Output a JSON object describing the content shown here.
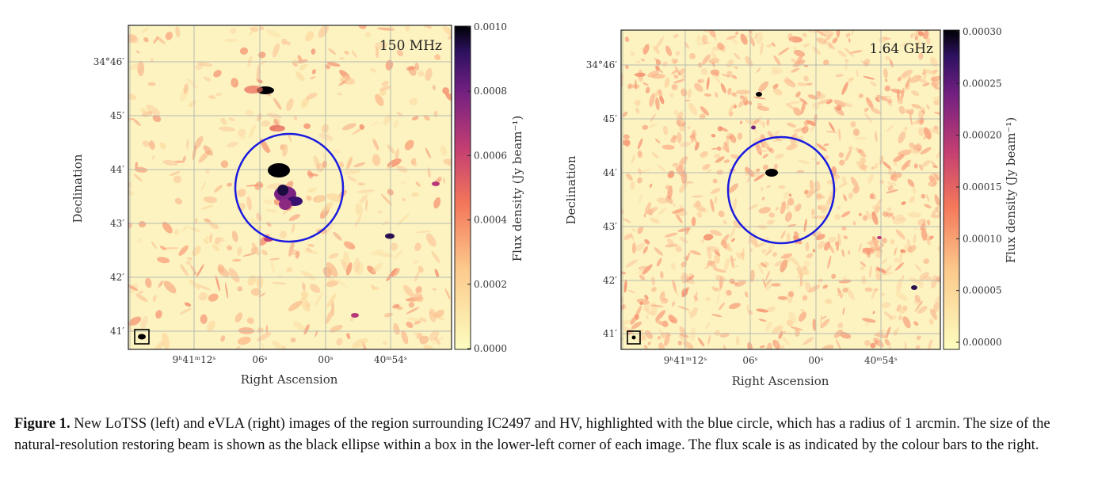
{
  "panels": [
    {
      "frequency": "150 MHz",
      "colorbar_ticks": [
        "0.0010",
        "0.0008",
        "0.0006",
        "0.0004",
        "0.0002",
        "0.0000"
      ],
      "colorbar_label": "Flux density (Jy beam⁻¹)"
    },
    {
      "frequency": "1.64 GHz",
      "colorbar_ticks": [
        "0.00030",
        "0.00025",
        "0.00020",
        "0.00015",
        "0.00010",
        "0.00005",
        "0.00000"
      ],
      "colorbar_label": "Flux density (Jy beam⁻¹)"
    }
  ],
  "axes": {
    "xlabel": "Right Ascension",
    "ylabel": "Declination",
    "ra_ticks": [
      "9ʰ41ᵐ12ˢ",
      "06ˢ",
      "00ˢ",
      "40ᵐ54ˢ"
    ],
    "dec_ticks": [
      "34°46′",
      "45′",
      "44′",
      "43′",
      "42′",
      "41′"
    ]
  },
  "colors": {
    "background": "#fcf3c0",
    "circle": "#1a1ae0",
    "colormap": [
      "#fcfdbf",
      "#fc8961",
      "#b73779",
      "#51127c",
      "#000004"
    ]
  },
  "caption": {
    "label": "Figure 1.",
    "text": "New LoTSS (left) and eVLA (right) images of the region surrounding IC2497 and HV, highlighted with the blue circle, which has a radius of 1 arcmin. The size of the natural-resolution restoring beam is shown as the black ellipse within a box in the lower-left corner of each image. The flux scale is as indicated by the colour bars to the right."
  }
}
